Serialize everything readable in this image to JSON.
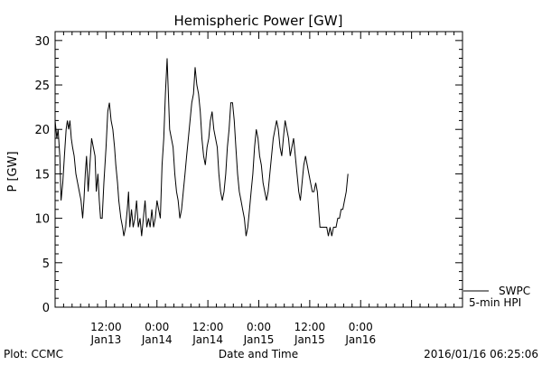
{
  "chart_data": {
    "type": "line",
    "title": "Hemispheric Power [GW]",
    "ylabel": "P [GW]",
    "xlabel": "Date and Time",
    "ylim": [
      0,
      31
    ],
    "yticks": [
      0,
      5,
      10,
      15,
      20,
      25,
      30
    ],
    "xlim_hours": [
      0,
      96
    ],
    "x_ticks": [
      {
        "hour": 12,
        "time": "12:00",
        "date": "Jan13"
      },
      {
        "hour": 24,
        "time": "0:00",
        "date": "Jan14"
      },
      {
        "hour": 36,
        "time": "12:00",
        "date": "Jan14"
      },
      {
        "hour": 48,
        "time": "0:00",
        "date": "Jan15"
      },
      {
        "hour": 60,
        "time": "12:00",
        "date": "Jan15"
      },
      {
        "hour": 72,
        "time": "0:00",
        "date": "Jan16"
      }
    ],
    "series": [
      {
        "name": "SWPC 5-min HPI",
        "points": [
          [
            0.0,
            21
          ],
          [
            0.4,
            19
          ],
          [
            0.7,
            20
          ],
          [
            1.1,
            17
          ],
          [
            1.4,
            12
          ],
          [
            1.8,
            14
          ],
          [
            2.2,
            17
          ],
          [
            2.6,
            20
          ],
          [
            2.9,
            21
          ],
          [
            3.2,
            20
          ],
          [
            3.5,
            21
          ],
          [
            3.8,
            19
          ],
          [
            4.1,
            18
          ],
          [
            4.5,
            17
          ],
          [
            4.9,
            15
          ],
          [
            5.3,
            14
          ],
          [
            5.7,
            13
          ],
          [
            6.1,
            12
          ],
          [
            6.5,
            10
          ],
          [
            6.8,
            12
          ],
          [
            7.1,
            15
          ],
          [
            7.4,
            17
          ],
          [
            7.8,
            13
          ],
          [
            8.2,
            16
          ],
          [
            8.6,
            19
          ],
          [
            9.0,
            18
          ],
          [
            9.4,
            17
          ],
          [
            9.7,
            13
          ],
          [
            10.1,
            15
          ],
          [
            10.4,
            12
          ],
          [
            10.7,
            10
          ],
          [
            11.1,
            10
          ],
          [
            11.5,
            14
          ],
          [
            12.0,
            18
          ],
          [
            12.4,
            22
          ],
          [
            12.8,
            23
          ],
          [
            13.2,
            21
          ],
          [
            13.6,
            20
          ],
          [
            14.0,
            18
          ],
          [
            14.3,
            16
          ],
          [
            14.7,
            14
          ],
          [
            15.0,
            12
          ],
          [
            15.5,
            10
          ],
          [
            15.9,
            9
          ],
          [
            16.2,
            8
          ],
          [
            16.6,
            9
          ],
          [
            17.0,
            11
          ],
          [
            17.3,
            13
          ],
          [
            17.6,
            9
          ],
          [
            18.0,
            11
          ],
          [
            18.4,
            9
          ],
          [
            18.8,
            10
          ],
          [
            19.2,
            12
          ],
          [
            19.6,
            9
          ],
          [
            20.0,
            10
          ],
          [
            20.4,
            8
          ],
          [
            20.8,
            10
          ],
          [
            21.2,
            12
          ],
          [
            21.6,
            9
          ],
          [
            22.0,
            10
          ],
          [
            22.4,
            9
          ],
          [
            22.8,
            11
          ],
          [
            23.2,
            9
          ],
          [
            23.6,
            10
          ],
          [
            24.0,
            12
          ],
          [
            24.4,
            11
          ],
          [
            24.8,
            10
          ],
          [
            25.2,
            16
          ],
          [
            25.6,
            19
          ],
          [
            26.0,
            24
          ],
          [
            26.4,
            28
          ],
          [
            26.7,
            24
          ],
          [
            27.0,
            20
          ],
          [
            27.4,
            19
          ],
          [
            27.8,
            18
          ],
          [
            28.2,
            15
          ],
          [
            28.6,
            13
          ],
          [
            29.0,
            12
          ],
          [
            29.4,
            10
          ],
          [
            29.8,
            11
          ],
          [
            30.2,
            13
          ],
          [
            30.6,
            15
          ],
          [
            31.0,
            17
          ],
          [
            31.4,
            19
          ],
          [
            31.8,
            21
          ],
          [
            32.2,
            23
          ],
          [
            32.6,
            24
          ],
          [
            33.0,
            27
          ],
          [
            33.4,
            25
          ],
          [
            33.8,
            24
          ],
          [
            34.2,
            22
          ],
          [
            34.6,
            19
          ],
          [
            35.0,
            17
          ],
          [
            35.4,
            16
          ],
          [
            35.8,
            18
          ],
          [
            36.2,
            19
          ],
          [
            36.6,
            21
          ],
          [
            37.0,
            22
          ],
          [
            37.4,
            20
          ],
          [
            37.8,
            19
          ],
          [
            38.2,
            18
          ],
          [
            38.6,
            15
          ],
          [
            39.0,
            13
          ],
          [
            39.4,
            12
          ],
          [
            39.8,
            13
          ],
          [
            40.2,
            15
          ],
          [
            40.6,
            18
          ],
          [
            41.0,
            20
          ],
          [
            41.4,
            23
          ],
          [
            41.8,
            23
          ],
          [
            42.2,
            21
          ],
          [
            42.6,
            18
          ],
          [
            43.0,
            15
          ],
          [
            43.4,
            13
          ],
          [
            43.8,
            12
          ],
          [
            44.2,
            11
          ],
          [
            44.6,
            10
          ],
          [
            45.0,
            8
          ],
          [
            45.4,
            9
          ],
          [
            45.8,
            11
          ],
          [
            46.2,
            13
          ],
          [
            46.6,
            15
          ],
          [
            47.0,
            18
          ],
          [
            47.4,
            20
          ],
          [
            47.8,
            19
          ],
          [
            48.2,
            17
          ],
          [
            48.6,
            16
          ],
          [
            49.0,
            14
          ],
          [
            49.4,
            13
          ],
          [
            49.8,
            12
          ],
          [
            50.2,
            13
          ],
          [
            50.6,
            15
          ],
          [
            51.0,
            17
          ],
          [
            51.4,
            19
          ],
          [
            51.8,
            20
          ],
          [
            52.2,
            21
          ],
          [
            52.6,
            20
          ],
          [
            53.0,
            18
          ],
          [
            53.4,
            17
          ],
          [
            53.8,
            19
          ],
          [
            54.2,
            21
          ],
          [
            54.6,
            20
          ],
          [
            55.0,
            19
          ],
          [
            55.4,
            17
          ],
          [
            55.8,
            18
          ],
          [
            56.2,
            19
          ],
          [
            56.6,
            17
          ],
          [
            57.0,
            15
          ],
          [
            57.4,
            13
          ],
          [
            57.8,
            12
          ],
          [
            58.2,
            14
          ],
          [
            58.6,
            16
          ],
          [
            59.0,
            17
          ],
          [
            59.4,
            16
          ],
          [
            59.8,
            15
          ],
          [
            60.2,
            14
          ],
          [
            60.6,
            13
          ],
          [
            61.0,
            13
          ],
          [
            61.4,
            14
          ],
          [
            61.8,
            13
          ],
          [
            62.4,
            9
          ],
          [
            63.2,
            9
          ],
          [
            64.0,
            9
          ],
          [
            64.4,
            8
          ],
          [
            64.8,
            9
          ],
          [
            65.2,
            8
          ],
          [
            65.6,
            9
          ],
          [
            66.2,
            9
          ],
          [
            66.6,
            10
          ],
          [
            67.0,
            10
          ],
          [
            67.4,
            11
          ],
          [
            67.8,
            11
          ],
          [
            68.2,
            12
          ],
          [
            68.6,
            13
          ],
          [
            69.0,
            15
          ]
        ]
      }
    ]
  },
  "legend": {
    "line1": "SWPC",
    "line2": "5-min HPI"
  },
  "footer": {
    "left": "Plot: CCMC",
    "right": "2016/01/16 06:25:06"
  },
  "colors": {
    "line": "#000000",
    "background": "#ffffff"
  }
}
